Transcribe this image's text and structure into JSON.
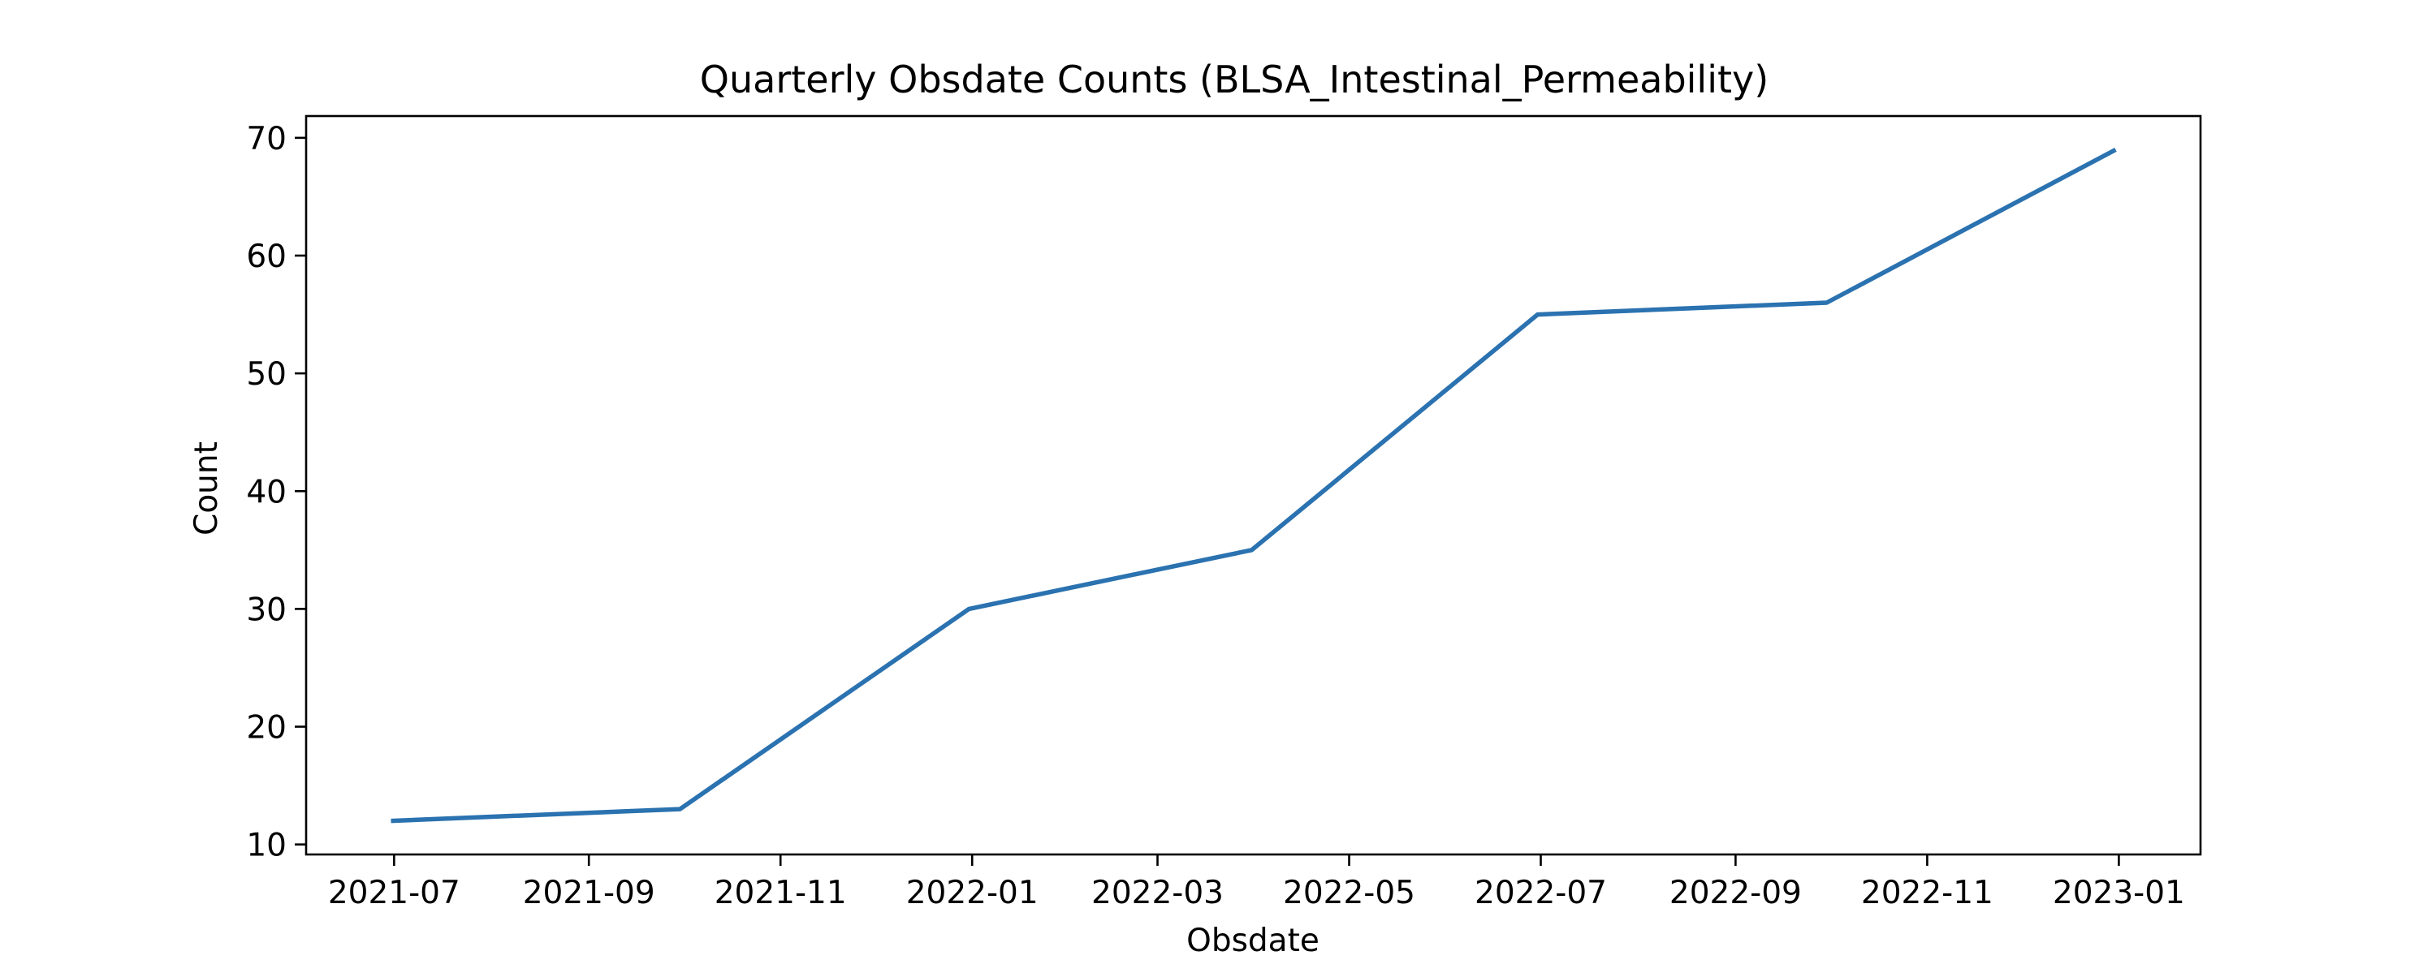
{
  "chart_data": {
    "type": "line",
    "title": "Quarterly Obsdate Counts (BLSA_Intestinal_Permeability)",
    "xlabel": "Obsdate",
    "ylabel": "Count",
    "x_tick_labels": [
      "2021-07",
      "2021-09",
      "2021-11",
      "2022-01",
      "2022-03",
      "2022-05",
      "2022-07",
      "2022-09",
      "2022-11",
      "2023-01"
    ],
    "y_ticks": [
      10,
      20,
      30,
      40,
      50,
      60,
      70
    ],
    "xlim": [
      "2021-06-03",
      "2023-01-27"
    ],
    "ylim": [
      9.15,
      71.85
    ],
    "grid": false,
    "legend": "none",
    "line_color": "#2b72b0",
    "series": [
      {
        "x": [
          "2021-06-30",
          "2021-09-30",
          "2021-12-31",
          "2022-03-31",
          "2022-06-30",
          "2022-09-30",
          "2022-12-31"
        ],
        "values": [
          12,
          13,
          30,
          35,
          55,
          56,
          69
        ]
      }
    ]
  }
}
